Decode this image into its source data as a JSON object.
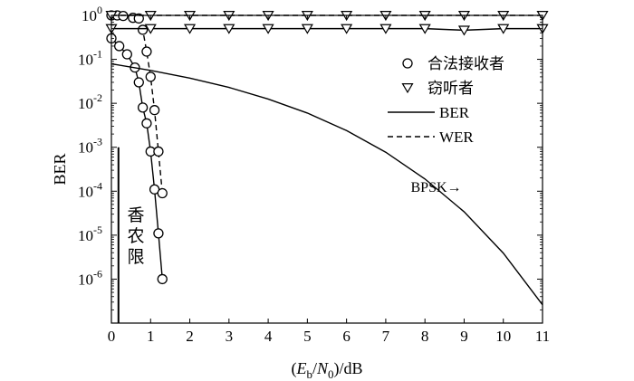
{
  "chart_data": {
    "type": "line",
    "xlabel": "(Eb/N0)/dB",
    "xlabel_parts": {
      "open": "(",
      "E": "E",
      "E_sub": "b",
      "slash": "/",
      "N": "N",
      "N_sub": "0",
      "close": ")/dB"
    },
    "ylabel": "BER",
    "xlim": [
      0,
      11
    ],
    "ylim": [
      1e-07,
      1
    ],
    "yscale": "log",
    "x_ticks": [
      "0",
      "1",
      "2",
      "3",
      "4",
      "5",
      "6",
      "7",
      "8",
      "9",
      "10",
      "11"
    ],
    "y_ticks": [
      {
        "base": "10",
        "exp": "0",
        "value": 1
      },
      {
        "base": "10",
        "exp": "-1",
        "value": 0.1
      },
      {
        "base": "10",
        "exp": "-2",
        "value": 0.01
      },
      {
        "base": "10",
        "exp": "-3",
        "value": 0.001
      },
      {
        "base": "10",
        "exp": "-4",
        "value": 0.0001
      },
      {
        "base": "10",
        "exp": "-5",
        "value": 1e-05
      },
      {
        "base": "10",
        "exp": "-6",
        "value": 1e-06
      }
    ],
    "grid": false,
    "legend_position": "top-right",
    "legend": [
      {
        "label": "合法接收者",
        "marker": "circle",
        "line": "none"
      },
      {
        "label": "窃听者",
        "marker": "triangle-down",
        "line": "none"
      },
      {
        "label": "BER",
        "marker": "none",
        "line": "solid"
      },
      {
        "label": "WER",
        "marker": "none",
        "line": "dashed"
      }
    ],
    "series": [
      {
        "receiver": "合法接收者",
        "metric": "BER",
        "marker": "circle",
        "line": "solid",
        "x": [
          0,
          0.2,
          0.4,
          0.6,
          0.7,
          0.8,
          0.9,
          1.0,
          1.1,
          1.2,
          1.3
        ],
        "y": [
          0.3,
          0.2,
          0.13,
          0.065,
          0.03,
          0.008,
          0.0035,
          0.0008,
          0.00011,
          1.1e-05,
          1e-06
        ]
      },
      {
        "receiver": "合法接收者",
        "metric": "WER",
        "marker": "circle",
        "line": "dashed",
        "x": [
          0,
          0.15,
          0.3,
          0.55,
          0.7,
          0.8,
          0.9,
          1.0,
          1.1,
          1.2,
          1.3
        ],
        "y": [
          1.0,
          1.0,
          0.97,
          0.88,
          0.85,
          0.47,
          0.15,
          0.04,
          0.007,
          0.0008,
          9e-05
        ]
      },
      {
        "receiver": "窃听者",
        "metric": "BER",
        "marker": "triangle-down",
        "line": "solid",
        "x": [
          0,
          1,
          2,
          3,
          4,
          5,
          6,
          7,
          8,
          9,
          10,
          11
        ],
        "y": [
          0.5,
          0.5,
          0.5,
          0.5,
          0.5,
          0.5,
          0.5,
          0.5,
          0.5,
          0.46,
          0.5,
          0.5
        ]
      },
      {
        "receiver": "窃听者",
        "metric": "WER",
        "marker": "triangle-down",
        "line": "dashed",
        "x": [
          0,
          1,
          2,
          3,
          4,
          5,
          6,
          7,
          8,
          9,
          10,
          11
        ],
        "y": [
          1,
          1,
          1,
          1,
          1,
          1,
          1,
          1,
          1,
          1,
          1,
          1
        ]
      },
      {
        "name": "BPSK",
        "line": "solid",
        "marker": "none",
        "x": [
          0,
          1,
          2,
          3,
          4,
          5,
          6,
          7,
          8,
          9,
          10,
          11
        ],
        "y": [
          0.079,
          0.056,
          0.0375,
          0.023,
          0.0125,
          0.006,
          0.0024,
          0.00077,
          0.00019,
          3.4e-05,
          3.9e-06,
          2.6e-07
        ]
      }
    ],
    "annotations": [
      {
        "text": "BPSK→",
        "x": 8.1,
        "y": 0.00013
      },
      {
        "text_chars": [
          "香",
          "农",
          "限"
        ],
        "shannon_limit_x": 0.18
      }
    ]
  }
}
